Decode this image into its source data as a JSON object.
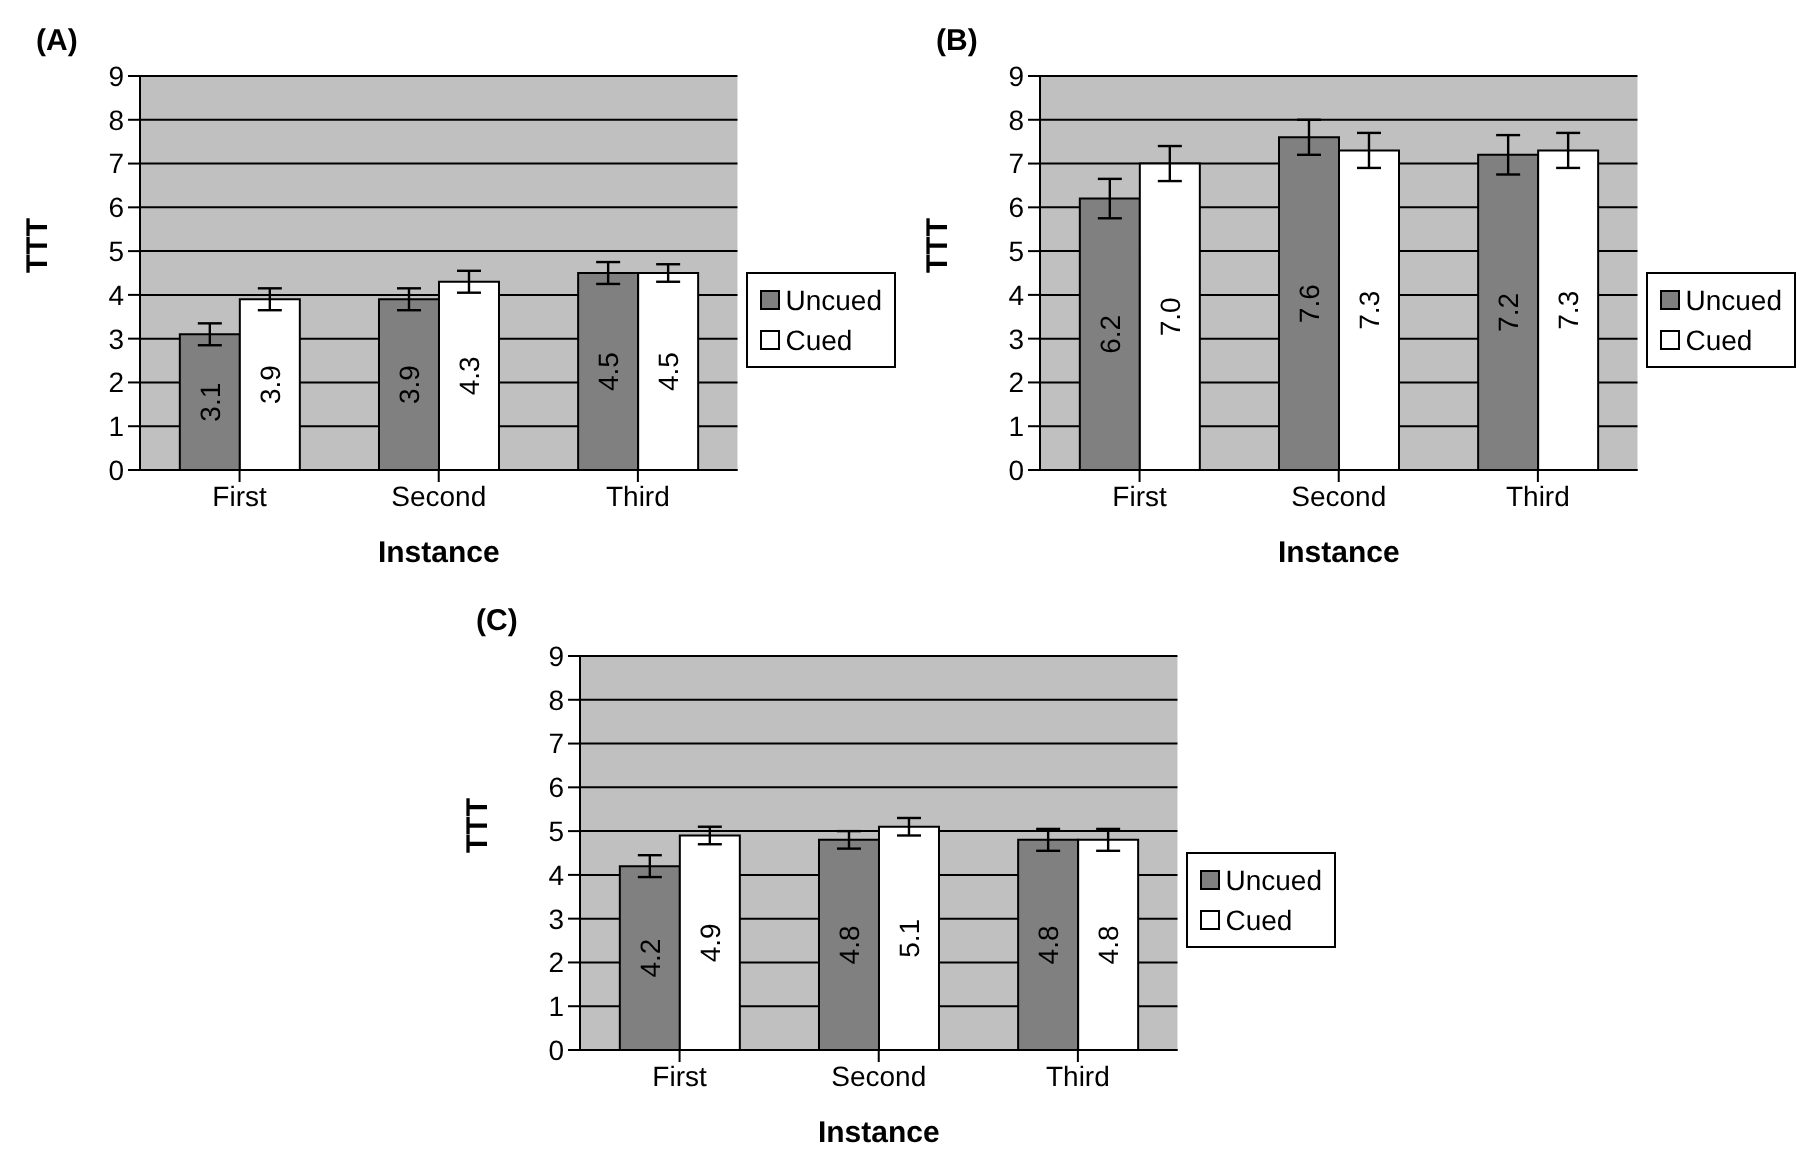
{
  "chart_data": [
    {
      "type": "bar",
      "title": "(A)",
      "xlabel": "Instance",
      "ylabel": "TTT",
      "categories": [
        "First",
        "Second",
        "Third"
      ],
      "ylim": [
        0,
        9
      ],
      "yticks": [
        0,
        1,
        2,
        3,
        4,
        5,
        6,
        7,
        8,
        9
      ],
      "grid": "y",
      "legend": "right",
      "series": [
        {
          "name": "Uncued",
          "color": "#808080",
          "values": [
            3.1,
            3.9,
            4.5
          ],
          "errors": [
            0.25,
            0.25,
            0.25
          ],
          "value_labels": [
            "3.1",
            "3.9",
            "4.5"
          ]
        },
        {
          "name": "Cued",
          "color": "#ffffff",
          "values": [
            3.9,
            4.3,
            4.5
          ],
          "errors": [
            0.25,
            0.25,
            0.2
          ],
          "value_labels": [
            "3.9",
            "4.3",
            "4.5"
          ]
        }
      ]
    },
    {
      "type": "bar",
      "title": "(B)",
      "xlabel": "Instance",
      "ylabel": "TTT",
      "categories": [
        "First",
        "Second",
        "Third"
      ],
      "ylim": [
        0,
        9
      ],
      "yticks": [
        0,
        1,
        2,
        3,
        4,
        5,
        6,
        7,
        8,
        9
      ],
      "grid": "y",
      "legend": "right",
      "series": [
        {
          "name": "Uncued",
          "color": "#808080",
          "values": [
            6.2,
            7.6,
            7.2
          ],
          "errors": [
            0.45,
            0.4,
            0.45
          ],
          "value_labels": [
            "6.2",
            "7.6",
            "7.2"
          ]
        },
        {
          "name": "Cued",
          "color": "#ffffff",
          "values": [
            7.0,
            7.3,
            7.3
          ],
          "errors": [
            0.4,
            0.4,
            0.4
          ],
          "value_labels": [
            "7.0",
            "7.3",
            "7.3"
          ]
        }
      ]
    },
    {
      "type": "bar",
      "title": "(C)",
      "xlabel": "Instance",
      "ylabel": "TTT",
      "categories": [
        "First",
        "Second",
        "Third"
      ],
      "ylim": [
        0,
        9
      ],
      "yticks": [
        0,
        1,
        2,
        3,
        4,
        5,
        6,
        7,
        8,
        9
      ],
      "grid": "y",
      "legend": "right",
      "series": [
        {
          "name": "Uncued",
          "color": "#808080",
          "values": [
            4.2,
            4.8,
            4.8
          ],
          "errors": [
            0.25,
            0.2,
            0.25
          ],
          "value_labels": [
            "4.2",
            "4.8",
            "4.8"
          ]
        },
        {
          "name": "Cued",
          "color": "#ffffff",
          "values": [
            4.9,
            5.1,
            4.8
          ],
          "errors": [
            0.2,
            0.2,
            0.25
          ],
          "value_labels": [
            "4.9",
            "5.1",
            "4.8"
          ]
        }
      ]
    }
  ]
}
